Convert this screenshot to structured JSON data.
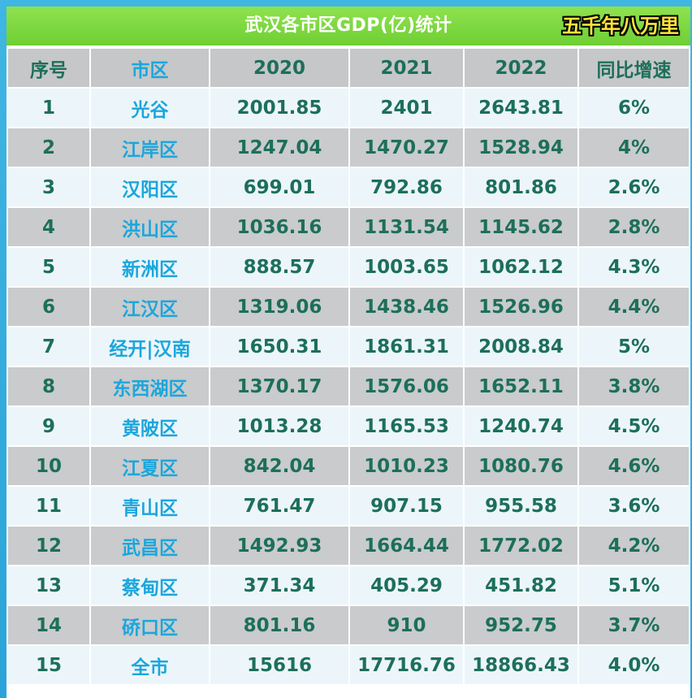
{
  "title": "武汉各市区GDP(亿)统计",
  "watermark": "五千年八万里",
  "chart_data": {
    "type": "table",
    "title": "武汉各市区GDP(亿)统计",
    "columns": [
      "序号",
      "市区",
      "2020",
      "2021",
      "2022",
      "同比增速"
    ],
    "rows": [
      [
        "1",
        "光谷",
        "2001.85",
        "2401",
        "2643.81",
        "6%"
      ],
      [
        "2",
        "江岸区",
        "1247.04",
        "1470.27",
        "1528.94",
        "4%"
      ],
      [
        "3",
        "汉阳区",
        "699.01",
        "792.86",
        "801.86",
        "2.6%"
      ],
      [
        "4",
        "洪山区",
        "1036.16",
        "1131.54",
        "1145.62",
        "2.8%"
      ],
      [
        "5",
        "新洲区",
        "888.57",
        "1003.65",
        "1062.12",
        "4.3%"
      ],
      [
        "6",
        "江汉区",
        "1319.06",
        "1438.46",
        "1526.96",
        "4.4%"
      ],
      [
        "7",
        "经开|汉南",
        "1650.31",
        "1861.31",
        "2008.84",
        "5%"
      ],
      [
        "8",
        "东西湖区",
        "1370.17",
        "1576.06",
        "1652.11",
        "3.8%"
      ],
      [
        "9",
        "黄陂区",
        "1013.28",
        "1165.53",
        "1240.74",
        "4.5%"
      ],
      [
        "10",
        "江夏区",
        "842.04",
        "1010.23",
        "1080.76",
        "4.6%"
      ],
      [
        "11",
        "青山区",
        "761.47",
        "907.15",
        "955.58",
        "3.6%"
      ],
      [
        "12",
        "武昌区",
        "1492.93",
        "1664.44",
        "1772.02",
        "4.2%"
      ],
      [
        "13",
        "蔡甸区",
        "371.34",
        "405.29",
        "451.82",
        "5.1%"
      ],
      [
        "14",
        "硚口区",
        "801.16",
        "910",
        "952.75",
        "3.7%"
      ],
      [
        "15",
        "全市",
        "15616",
        "17716.76",
        "18866.43",
        "4.0%"
      ]
    ]
  }
}
